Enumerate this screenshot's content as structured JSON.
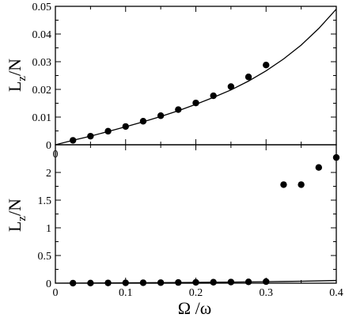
{
  "chart_data": [
    {
      "type": "scatter",
      "ylabel_main": "L",
      "ylabel_sub": "z",
      "ylabel_rest": "/N",
      "xlim": [
        0,
        0.4
      ],
      "ylim": [
        0,
        0.05
      ],
      "xticks": [
        0,
        0.1,
        0.2,
        0.3,
        0.4
      ],
      "yticks": [
        0,
        0.01,
        0.02,
        0.03,
        0.04,
        0.05
      ],
      "ytick_labels": [
        "0",
        "0.01",
        "0.02",
        "0.03",
        "0.04",
        "0.05"
      ],
      "xtick_labels": [
        "0",
        "",
        "",
        "",
        ""
      ],
      "grid": false,
      "series": [
        {
          "kind": "points",
          "x": [
            0.025,
            0.05,
            0.075,
            0.1,
            0.125,
            0.15,
            0.175,
            0.2,
            0.225,
            0.25,
            0.275,
            0.3
          ],
          "y": [
            0.0016,
            0.0031,
            0.0049,
            0.0066,
            0.0085,
            0.0105,
            0.0127,
            0.0151,
            0.0177,
            0.021,
            0.0245,
            0.0288
          ]
        },
        {
          "kind": "curve",
          "x": [
            0,
            0.025,
            0.05,
            0.075,
            0.1,
            0.125,
            0.15,
            0.175,
            0.2,
            0.225,
            0.25,
            0.275,
            0.3,
            0.325,
            0.35,
            0.375,
            0.4
          ],
          "y": [
            0,
            0.0016,
            0.0031,
            0.0048,
            0.0065,
            0.0083,
            0.0102,
            0.0123,
            0.0146,
            0.0171,
            0.0198,
            0.023,
            0.0267,
            0.031,
            0.036,
            0.042,
            0.049
          ]
        }
      ]
    },
    {
      "type": "scatter",
      "ylabel_main": "L",
      "ylabel_sub": "z",
      "ylabel_rest": "/N",
      "xlabel_main": "Ω",
      "xlabel_rest": " /ω",
      "xlim": [
        0,
        0.4
      ],
      "ylim": [
        0,
        2.5
      ],
      "xticks": [
        0,
        0.1,
        0.2,
        0.3,
        0.4
      ],
      "xtick_labels": [
        "0",
        "0.1",
        "0.2",
        "0.3",
        "0.4"
      ],
      "yticks": [
        0,
        0.5,
        1,
        1.5,
        2
      ],
      "ytick_labels": [
        "0",
        "0.5",
        "1",
        "1.5",
        "2"
      ],
      "grid": false,
      "series": [
        {
          "kind": "points",
          "x": [
            0.025,
            0.05,
            0.075,
            0.1,
            0.125,
            0.15,
            0.175,
            0.2,
            0.225,
            0.25,
            0.275,
            0.3,
            0.325,
            0.35,
            0.375,
            0.4
          ],
          "y": [
            0.0016,
            0.0031,
            0.0049,
            0.0066,
            0.0085,
            0.0105,
            0.0127,
            0.0151,
            0.0177,
            0.021,
            0.0245,
            0.0288,
            1.78,
            1.78,
            2.09,
            2.27
          ]
        },
        {
          "kind": "curve",
          "x": [
            0,
            0.025,
            0.05,
            0.075,
            0.1,
            0.125,
            0.15,
            0.175,
            0.2,
            0.225,
            0.25,
            0.275,
            0.3,
            0.325,
            0.35,
            0.375,
            0.4
          ],
          "y": [
            0,
            0.0016,
            0.0031,
            0.0048,
            0.0065,
            0.0083,
            0.0102,
            0.0123,
            0.0146,
            0.0171,
            0.0198,
            0.023,
            0.0267,
            0.031,
            0.036,
            0.042,
            0.049
          ]
        }
      ]
    }
  ]
}
